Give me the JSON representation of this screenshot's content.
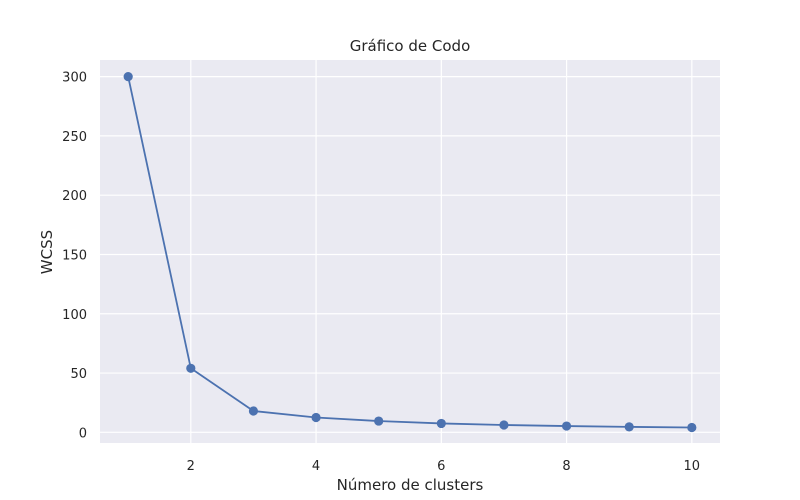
{
  "chart_data": {
    "type": "line",
    "title": "Gráfico de Codo",
    "xlabel": "Número de clusters",
    "ylabel": "WCSS",
    "x": [
      1,
      2,
      3,
      4,
      5,
      6,
      7,
      8,
      9,
      10
    ],
    "series": [
      {
        "name": "WCSS",
        "values": [
          300,
          54,
          18,
          12.5,
          9.5,
          7.5,
          6.2,
          5.3,
          4.6,
          4.1
        ]
      }
    ],
    "xlim": [
      0.55,
      10.45
    ],
    "ylim": [
      -9,
      314
    ],
    "xticks": [
      2,
      4,
      6,
      8,
      10
    ],
    "yticks": [
      0,
      50,
      100,
      150,
      200,
      250,
      300
    ],
    "grid": true,
    "colors": {
      "background": "#eaeaf2",
      "grid": "#ffffff",
      "line": "#4c72b0",
      "text": "#262626"
    }
  }
}
